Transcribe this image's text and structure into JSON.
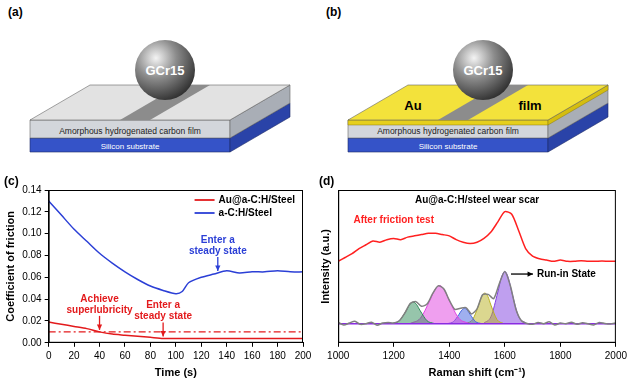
{
  "diagrams": [
    {
      "label": "(a)",
      "ball": "GCr15",
      "layers": [
        "Amorphous hydrogenated carbon film",
        "Silicon substrate"
      ]
    },
    {
      "label": "(b)",
      "ball": "GCr15",
      "top_film": [
        "Au",
        "film"
      ],
      "layers": [
        "Amorphous hydrogenated carbon film",
        "Silicon substrate"
      ]
    }
  ],
  "chart_data": [
    {
      "panel_label": "(c)",
      "type": "line",
      "x_label": "Time (s)",
      "y_label": "Coefficient of friction",
      "xlim": [
        0,
        200
      ],
      "xticks": [
        0,
        20,
        40,
        60,
        80,
        100,
        120,
        140,
        160,
        180,
        200
      ],
      "ylim": [
        0,
        0.14
      ],
      "yticks": [
        {
          "value": 0,
          "label": "0.00"
        },
        {
          "value": 0.02,
          "label": "0.02"
        },
        {
          "value": 0.04,
          "label": "0.04"
        },
        {
          "value": 0.06,
          "label": "0.06"
        },
        {
          "value": 0.08,
          "label": "0.08"
        },
        {
          "value": 0.1,
          "label": "0.10"
        },
        {
          "value": 0.12,
          "label": "0.12"
        },
        {
          "value": 0.14,
          "label": "0.14"
        }
      ],
      "grid": false,
      "legend": "upper right",
      "series": [
        {
          "name": "Au@a-C:H/Steel",
          "color": "#e31a1c",
          "x": [
            0,
            10,
            20,
            30,
            40,
            50,
            60,
            70,
            80,
            90,
            100,
            120,
            140,
            160,
            180,
            200
          ],
          "values": [
            0.019,
            0.017,
            0.015,
            0.013,
            0.01,
            0.008,
            0.007,
            0.006,
            0.005,
            0.004,
            0.004,
            0.004,
            0.004,
            0.004,
            0.004,
            0.004
          ]
        },
        {
          "name": "a-C:H/Steel",
          "color": "#2b3fd6",
          "x": [
            0,
            10,
            20,
            30,
            40,
            50,
            60,
            70,
            80,
            90,
            100,
            105,
            110,
            120,
            130,
            140,
            150,
            160,
            170,
            180,
            190,
            200
          ],
          "values": [
            0.13,
            0.117,
            0.104,
            0.093,
            0.082,
            0.073,
            0.065,
            0.058,
            0.052,
            0.048,
            0.045,
            0.047,
            0.055,
            0.06,
            0.063,
            0.066,
            0.064,
            0.065,
            0.065,
            0.066,
            0.065,
            0.065
          ]
        }
      ],
      "reference_line": {
        "value": 0.01,
        "color": "#e31a1c",
        "line_style": "dashdot"
      },
      "annotations": [
        {
          "text": [
            "Achieve",
            "superlubricity"
          ],
          "x": 40,
          "y": 0.01,
          "color": "#e31a1c",
          "marker": "arrow_down"
        },
        {
          "text": [
            "Enter a",
            "steady state"
          ],
          "x": 90,
          "y": 0.004,
          "color": "#e31a1c",
          "marker": "arrow_down"
        },
        {
          "text": [
            "Enter a",
            "steady state"
          ],
          "x": 133,
          "y": 0.064,
          "color": "#2b3fd6",
          "marker": "arrow_down"
        }
      ]
    },
    {
      "panel_label": "(d)",
      "type": "line",
      "title": "Au@a-C:H/steel wear scar",
      "x_label": "Raman shift (cm⁻¹)",
      "y_label": "Intensity (a.u.)",
      "xlim": [
        1000,
        2000
      ],
      "xticks": [
        1000,
        1200,
        1400,
        1600,
        1800,
        2000
      ],
      "ylim": [
        -1.5,
        10.5
      ],
      "grid": false,
      "tick_labels": "x",
      "series": [
        {
          "color": "#ff2020",
          "type": "line",
          "x": [
            1000,
            1025,
            1050,
            1075,
            1100,
            1125,
            1150,
            1175,
            1200,
            1225,
            1250,
            1275,
            1300,
            1325,
            1350,
            1375,
            1400,
            1425,
            1450,
            1475,
            1500,
            1525,
            1550,
            1575,
            1600,
            1625,
            1650,
            1675,
            1700,
            1725,
            1750,
            1775,
            1800,
            1825,
            1850,
            1875,
            1900,
            1925,
            1950,
            1975,
            2000
          ],
          "values": [
            4.9,
            5.2,
            5.5,
            5.9,
            6.2,
            6.5,
            6.4,
            6.6,
            6.7,
            6.6,
            6.8,
            6.9,
            7.0,
            7.1,
            7.1,
            7.0,
            6.9,
            6.6,
            6.4,
            6.3,
            6.4,
            6.7,
            7.2,
            8.0,
            8.8,
            8.6,
            7.3,
            5.9,
            5.3,
            5.1,
            5.0,
            4.9,
            5.0,
            4.9,
            4.9,
            4.95,
            4.9,
            4.9,
            4.92,
            4.9,
            4.9
          ]
        },
        {
          "color": "#808080",
          "type": "line",
          "x": [
            1000,
            1020,
            1040,
            1060,
            1080,
            1100,
            1120,
            1140,
            1160,
            1180,
            1200,
            1220,
            1240,
            1260,
            1280,
            1300,
            1320,
            1340,
            1360,
            1380,
            1400,
            1420,
            1440,
            1460,
            1480,
            1500,
            1520,
            1540,
            1560,
            1580,
            1600,
            1620,
            1640,
            1660,
            1680,
            1700,
            1720,
            1740,
            1760,
            1780,
            1800,
            1820,
            1840,
            1860,
            1880,
            1900,
            1920,
            1940,
            1960,
            1980,
            2000
          ],
          "values": [
            0.1,
            -0.1,
            0.05,
            0.2,
            -0.05,
            0,
            0.12,
            -0.12,
            0.05,
            0.1,
            0.05,
            0.23,
            0.83,
            1.6,
            1.73,
            1.37,
            1.54,
            2.36,
            2.97,
            2.74,
            1.85,
            1.13,
            1.21,
            1.26,
            0.77,
            1.17,
            2.27,
            2.3,
            1.97,
            3.13,
            4.1,
            2.98,
            1.14,
            0.23,
            0.02,
            -0.05,
            0.1,
            0,
            0.15,
            -0.1,
            0.05,
            0,
            0.12,
            -0.05,
            0.08,
            0,
            -0.1,
            0.1,
            0.02,
            -0.02,
            0.05
          ]
        },
        {
          "color": "#8a2be2",
          "type": "line",
          "x": [
            1000,
            2000
          ],
          "values": [
            0,
            0
          ]
        },
        {
          "color": "#2e8b57",
          "type": "area",
          "x": [
            1195,
            1220,
            1245,
            1258,
            1270,
            1282,
            1295,
            1320,
            1345
          ],
          "values": [
            0.02,
            0.23,
            1.03,
            1.51,
            1.7,
            1.51,
            1.03,
            0.23,
            0.02
          ]
        },
        {
          "color": "#e040e0",
          "type": "area",
          "x": [
            1260,
            1295,
            1330,
            1348,
            1365,
            1382,
            1400,
            1435,
            1470
          ],
          "values": [
            0.03,
            0.41,
            1.82,
            2.67,
            3.0,
            2.67,
            1.82,
            0.41,
            0.03
          ]
        },
        {
          "color": "#4060e0",
          "type": "area",
          "x": [
            1395,
            1415,
            1435,
            1445,
            1455,
            1465,
            1475,
            1495,
            1515
          ],
          "values": [
            0.01,
            0.16,
            0.73,
            1.06,
            1.2,
            1.06,
            0.73,
            0.16,
            0.01
          ]
        },
        {
          "color": "#b8b020",
          "type": "area",
          "x": [
            1462,
            1484,
            1506,
            1517,
            1528,
            1539,
            1550,
            1572,
            1594
          ],
          "values": [
            0.03,
            0.32,
            1.46,
            2.14,
            2.4,
            2.14,
            1.46,
            0.32,
            0.03
          ]
        },
        {
          "color": "#8040e0",
          "type": "area",
          "x": [
            1525,
            1550,
            1575,
            1588,
            1600,
            1612,
            1625,
            1650,
            1675
          ],
          "values": [
            0.05,
            0.55,
            2.49,
            3.65,
            4.1,
            3.65,
            2.49,
            0.55,
            0.05
          ]
        }
      ],
      "annotations": [
        {
          "text": [
            "After friction test"
          ],
          "x": 1200,
          "y": 8.1,
          "color": "#ff2020"
        },
        {
          "text": [
            "Run-in State"
          ],
          "x": 1615,
          "y": 3.9,
          "color": "#000000",
          "marker": "arrow_right"
        }
      ]
    }
  ]
}
